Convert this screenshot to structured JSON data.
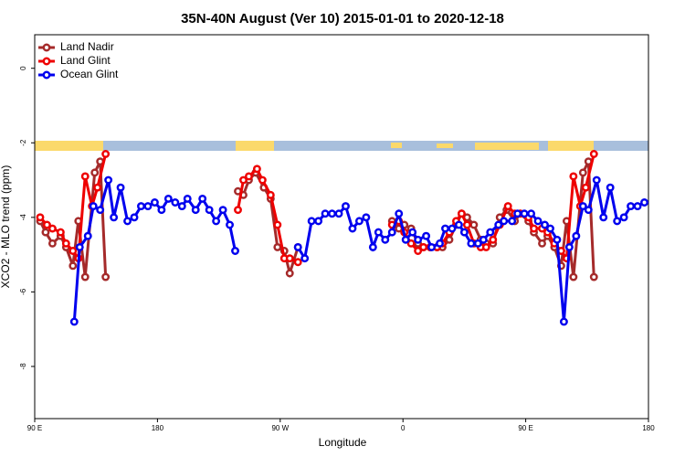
{
  "chart_data": {
    "type": "line",
    "title": "35N-40N August (Ver 10)   2015-01-01 to 2020-12-18",
    "x_label": "Longitude",
    "y_label": "XCO2 - MLO trend (ppm)",
    "xlim": [
      90,
      540
    ],
    "xticks": [
      {
        "value": 90,
        "label": "90 E"
      },
      {
        "value": 180,
        "label": "180"
      },
      {
        "value": 270,
        "label": "90 W"
      },
      {
        "value": 360,
        "label": "0"
      },
      {
        "value": 450,
        "label": "90 E"
      },
      {
        "value": 540,
        "label": "180"
      }
    ],
    "ylim": [
      -9.4,
      0.9
    ],
    "yticks": [
      0,
      -2,
      -4,
      -6,
      -8
    ],
    "legend": "top-left",
    "series": [
      {
        "name": "Land Nadir",
        "color": "#a52a2a",
        "x": [
          94,
          98,
          103,
          109,
          113,
          118,
          122,
          127,
          134,
          138,
          142,
          null,
          239,
          243,
          247,
          252,
          258,
          263,
          268,
          273,
          277,
          283,
          null,
          352,
          357,
          361,
          366,
          371,
          375,
          380,
          385,
          389,
          394,
          399,
          403,
          407,
          412,
          417,
          421,
          426,
          431,
          436,
          442,
          446,
          452,
          456,
          462,
          466,
          471,
          476,
          480,
          485,
          492,
          496,
          500
        ],
        "values": [
          -4.1,
          -4.4,
          -4.7,
          -4.5,
          -4.8,
          -5.3,
          -4.1,
          -5.6,
          -2.8,
          -2.5,
          -5.6,
          null,
          -3.3,
          -3.4,
          -3.0,
          -2.8,
          -3.2,
          -3.5,
          -4.8,
          -4.9,
          -5.5,
          -4.8,
          null,
          -4.1,
          -4.3,
          -4.2,
          -4.3,
          -4.7,
          -4.8,
          -4.8,
          -4.8,
          -4.8,
          -4.6,
          -4.2,
          -3.9,
          -4.0,
          -4.2,
          -4.6,
          -4.7,
          -4.7,
          -4.0,
          -3.8,
          -4.1,
          -3.9,
          -4.1,
          -4.4,
          -4.7,
          -4.5,
          -4.8,
          -5.3,
          -4.1,
          -5.6,
          -2.8,
          -2.5,
          -5.6
        ]
      },
      {
        "name": "Land Glint",
        "color": "#ee0000",
        "x": [
          94,
          99,
          103,
          109,
          113,
          118,
          122,
          127,
          132,
          136,
          142,
          null,
          239,
          243,
          247,
          253,
          257,
          263,
          268,
          273,
          277,
          283,
          null,
          352,
          357,
          361,
          366,
          371,
          375,
          380,
          385,
          389,
          394,
          399,
          403,
          407,
          412,
          417,
          421,
          426,
          431,
          437,
          442,
          446,
          452,
          456,
          462,
          466,
          471,
          476,
          480,
          485,
          490,
          494,
          500
        ],
        "values": [
          -4.0,
          -4.2,
          -4.3,
          -4.4,
          -4.7,
          -4.9,
          -5.1,
          -2.9,
          -3.7,
          -3.2,
          -2.3,
          null,
          -3.8,
          -3.0,
          -2.9,
          -2.7,
          -3.0,
          -3.4,
          -4.2,
          -5.1,
          -5.1,
          -5.2,
          null,
          -4.2,
          -4.1,
          -4.4,
          -4.7,
          -4.9,
          -4.8,
          -4.8,
          -4.8,
          -4.7,
          -4.4,
          -4.1,
          -3.9,
          -4.2,
          -4.7,
          -4.8,
          -4.8,
          -4.6,
          -4.2,
          -3.7,
          -3.9,
          -3.9,
          -4.0,
          -4.3,
          -4.3,
          -4.4,
          -4.7,
          -4.9,
          -5.1,
          -2.9,
          -3.7,
          -3.2,
          -2.3
        ]
      },
      {
        "name": "Ocean Glint",
        "color": "#0000ee",
        "x": [
          119,
          123,
          129,
          133,
          138,
          144,
          148,
          153,
          158,
          163,
          168,
          173,
          178,
          183,
          188,
          193,
          198,
          202,
          208,
          213,
          218,
          223,
          228,
          233,
          237,
          null,
          283,
          288,
          293,
          298,
          303,
          308,
          313,
          318,
          323,
          328,
          333,
          338,
          342,
          347,
          352,
          357,
          362,
          367,
          371,
          377,
          381,
          387,
          391,
          396,
          401,
          405,
          410,
          415,
          419,
          424,
          430,
          434,
          440,
          444,
          449,
          454,
          459,
          464,
          468,
          473,
          478,
          482,
          487,
          492,
          496,
          502,
          507,
          512,
          517,
          522,
          527,
          532,
          537
        ],
        "values": [
          -6.8,
          -4.8,
          -4.5,
          -3.7,
          -3.8,
          -3.0,
          -4.0,
          -3.2,
          -4.1,
          -4.0,
          -3.7,
          -3.7,
          -3.6,
          -3.8,
          -3.5,
          -3.6,
          -3.7,
          -3.5,
          -3.8,
          -3.5,
          -3.8,
          -4.1,
          -3.8,
          -4.2,
          -4.9,
          null,
          -4.8,
          -5.1,
          -4.1,
          -4.1,
          -3.9,
          -3.9,
          -3.9,
          -3.7,
          -4.3,
          -4.1,
          -4.0,
          -4.8,
          -4.4,
          -4.6,
          -4.4,
          -3.9,
          -4.6,
          -4.4,
          -4.6,
          -4.5,
          -4.8,
          -4.7,
          -4.3,
          -4.3,
          -4.2,
          -4.4,
          -4.7,
          -4.7,
          -4.6,
          -4.4,
          -4.2,
          -4.1,
          -4.1,
          -3.9,
          -3.9,
          -3.9,
          -4.1,
          -4.2,
          -4.3,
          -4.6,
          -6.8,
          -4.8,
          -4.5,
          -3.7,
          -3.8,
          -3.0,
          -4.0,
          -3.2,
          -4.1,
          -4.0,
          -3.7,
          -3.7,
          -3.6
        ]
      }
    ]
  }
}
